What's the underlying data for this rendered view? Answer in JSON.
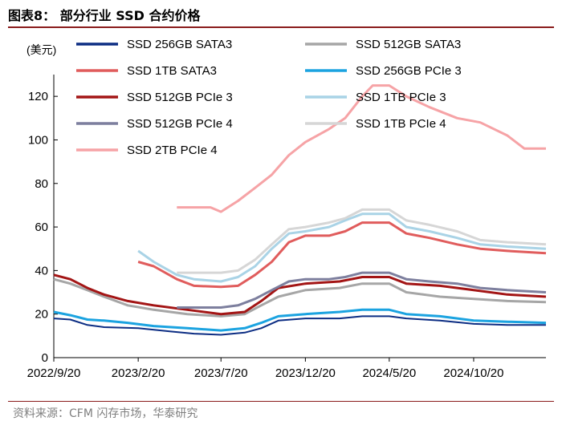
{
  "figure": {
    "title": "图表8：  部分行业 SSD 合约价格",
    "source": "资料来源：CFM 闪存市场，华泰研究"
  },
  "chart_data": {
    "type": "line",
    "title": "部分行业 SSD 合约价格",
    "ylabel": "(美元)",
    "xlabel": "",
    "ylim": [
      0,
      130
    ],
    "yticks": [
      0,
      20,
      40,
      60,
      80,
      100,
      120
    ],
    "xlim": [
      "2022-09-20",
      "2025-02-28"
    ],
    "xticks": [
      {
        "date": "2022-09-20",
        "label": "2022/9/20"
      },
      {
        "date": "2023-02-20",
        "label": "2023/2/20"
      },
      {
        "date": "2023-07-20",
        "label": "2023/7/20"
      },
      {
        "date": "2023-12-20",
        "label": "2023/12/20"
      },
      {
        "date": "2024-05-20",
        "label": "2024/5/20"
      },
      {
        "date": "2024-10-20",
        "label": "2024/10/20"
      }
    ],
    "grid": false,
    "legend_position": "top",
    "series": [
      {
        "name": "SSD 256GB SATA3",
        "color": "#0c2d83",
        "width": 2,
        "points": [
          [
            "2022-09-20",
            18
          ],
          [
            "2022-10-20",
            17.5
          ],
          [
            "2022-11-20",
            15
          ],
          [
            "2022-12-20",
            14
          ],
          [
            "2023-02-20",
            13.5
          ],
          [
            "2023-04-20",
            12
          ],
          [
            "2023-06-01",
            11
          ],
          [
            "2023-07-20",
            10.5
          ],
          [
            "2023-09-01",
            11.5
          ],
          [
            "2023-10-01",
            13.5
          ],
          [
            "2023-11-01",
            17
          ],
          [
            "2023-12-20",
            18
          ],
          [
            "2024-02-20",
            18
          ],
          [
            "2024-04-01",
            19
          ],
          [
            "2024-05-20",
            19
          ],
          [
            "2024-06-20",
            18
          ],
          [
            "2024-08-20",
            17
          ],
          [
            "2024-10-20",
            15.5
          ],
          [
            "2024-12-20",
            15
          ],
          [
            "2025-02-28",
            15
          ]
        ]
      },
      {
        "name": "SSD 512GB SATA3",
        "color": "#a6a6a6",
        "width": 3,
        "points": [
          [
            "2022-09-20",
            36
          ],
          [
            "2022-10-20",
            34
          ],
          [
            "2022-11-20",
            31
          ],
          [
            "2022-12-20",
            28
          ],
          [
            "2023-02-01",
            24
          ],
          [
            "2023-03-20",
            22
          ],
          [
            "2023-05-20",
            20
          ],
          [
            "2023-07-20",
            19
          ],
          [
            "2023-09-01",
            20
          ],
          [
            "2023-10-01",
            24
          ],
          [
            "2023-11-01",
            28
          ],
          [
            "2023-12-20",
            31
          ],
          [
            "2024-02-20",
            32
          ],
          [
            "2024-04-01",
            34
          ],
          [
            "2024-05-20",
            34
          ],
          [
            "2024-06-20",
            30
          ],
          [
            "2024-08-20",
            28
          ],
          [
            "2024-10-20",
            27
          ],
          [
            "2024-12-20",
            26
          ],
          [
            "2025-02-28",
            25.5
          ]
        ]
      },
      {
        "name": "SSD 1TB SATA3",
        "color": "#e05c5c",
        "width": 3,
        "points": [
          [
            "2023-02-20",
            44
          ],
          [
            "2023-03-20",
            42
          ],
          [
            "2023-05-01",
            36
          ],
          [
            "2023-06-01",
            33
          ],
          [
            "2023-07-20",
            32.5
          ],
          [
            "2023-08-20",
            33
          ],
          [
            "2023-09-20",
            38
          ],
          [
            "2023-10-20",
            44
          ],
          [
            "2023-11-20",
            53
          ],
          [
            "2023-12-20",
            56
          ],
          [
            "2024-02-01",
            56
          ],
          [
            "2024-03-01",
            58
          ],
          [
            "2024-04-01",
            62
          ],
          [
            "2024-05-20",
            62
          ],
          [
            "2024-06-20",
            57
          ],
          [
            "2024-08-01",
            55
          ],
          [
            "2024-09-20",
            52
          ],
          [
            "2024-11-01",
            50
          ],
          [
            "2024-12-20",
            49
          ],
          [
            "2025-02-28",
            48
          ]
        ]
      },
      {
        "name": "SSD 256GB PCIe 3",
        "color": "#1ba3e0",
        "width": 3,
        "points": [
          [
            "2022-09-20",
            21
          ],
          [
            "2022-10-20",
            19.5
          ],
          [
            "2022-11-20",
            17.5
          ],
          [
            "2022-12-20",
            17
          ],
          [
            "2023-02-01",
            16
          ],
          [
            "2023-03-20",
            14.5
          ],
          [
            "2023-05-20",
            13.5
          ],
          [
            "2023-07-20",
            12.5
          ],
          [
            "2023-09-01",
            13.5
          ],
          [
            "2023-10-01",
            16
          ],
          [
            "2023-11-01",
            19
          ],
          [
            "2023-12-20",
            20
          ],
          [
            "2024-02-20",
            21
          ],
          [
            "2024-04-01",
            22
          ],
          [
            "2024-05-20",
            22
          ],
          [
            "2024-06-20",
            20
          ],
          [
            "2024-08-20",
            19
          ],
          [
            "2024-10-20",
            17
          ],
          [
            "2024-12-20",
            16.5
          ],
          [
            "2025-02-28",
            16
          ]
        ]
      },
      {
        "name": "SSD 512GB PCIe 3",
        "color": "#a31515",
        "width": 3,
        "points": [
          [
            "2022-09-20",
            38
          ],
          [
            "2022-10-20",
            36
          ],
          [
            "2022-11-20",
            32
          ],
          [
            "2022-12-20",
            29
          ],
          [
            "2023-02-01",
            26
          ],
          [
            "2023-03-20",
            24
          ],
          [
            "2023-05-20",
            22
          ],
          [
            "2023-07-20",
            20
          ],
          [
            "2023-09-01",
            21
          ],
          [
            "2023-10-01",
            26
          ],
          [
            "2023-11-01",
            32
          ],
          [
            "2023-12-20",
            34
          ],
          [
            "2024-02-20",
            35
          ],
          [
            "2024-04-01",
            37
          ],
          [
            "2024-05-20",
            37
          ],
          [
            "2024-06-20",
            34
          ],
          [
            "2024-08-20",
            33
          ],
          [
            "2024-10-20",
            31
          ],
          [
            "2024-12-20",
            29
          ],
          [
            "2025-02-28",
            28
          ]
        ]
      },
      {
        "name": "SSD 1TB PCIe 3",
        "color": "#a9d3e6",
        "width": 3,
        "points": [
          [
            "2023-02-20",
            49
          ],
          [
            "2023-03-20",
            44
          ],
          [
            "2023-05-01",
            38
          ],
          [
            "2023-06-01",
            36
          ],
          [
            "2023-07-20",
            35
          ],
          [
            "2023-08-20",
            37
          ],
          [
            "2023-09-20",
            42
          ],
          [
            "2023-10-20",
            50
          ],
          [
            "2023-11-20",
            57
          ],
          [
            "2023-12-20",
            58
          ],
          [
            "2024-02-01",
            60
          ],
          [
            "2024-03-01",
            63
          ],
          [
            "2024-04-01",
            66
          ],
          [
            "2024-05-20",
            66
          ],
          [
            "2024-06-20",
            60
          ],
          [
            "2024-08-01",
            58
          ],
          [
            "2024-09-20",
            55
          ],
          [
            "2024-11-01",
            52
          ],
          [
            "2024-12-20",
            51
          ],
          [
            "2025-02-28",
            50
          ]
        ]
      },
      {
        "name": "SSD 512GB PCIe 4",
        "color": "#7d7f9e",
        "width": 3,
        "points": [
          [
            "2023-05-01",
            23
          ],
          [
            "2023-07-20",
            23
          ],
          [
            "2023-08-20",
            24
          ],
          [
            "2023-09-20",
            27
          ],
          [
            "2023-10-20",
            31
          ],
          [
            "2023-11-20",
            35
          ],
          [
            "2023-12-20",
            36
          ],
          [
            "2024-02-01",
            36
          ],
          [
            "2024-03-01",
            37
          ],
          [
            "2024-04-01",
            39
          ],
          [
            "2024-05-20",
            39
          ],
          [
            "2024-06-20",
            36
          ],
          [
            "2024-08-01",
            35
          ],
          [
            "2024-09-20",
            34
          ],
          [
            "2024-11-01",
            32
          ],
          [
            "2024-12-20",
            31
          ],
          [
            "2025-02-28",
            30
          ]
        ]
      },
      {
        "name": "SSD 1TB PCIe 4",
        "color": "#d6d6d6",
        "width": 3,
        "points": [
          [
            "2023-05-01",
            39
          ],
          [
            "2023-07-20",
            39
          ],
          [
            "2023-08-20",
            40
          ],
          [
            "2023-09-20",
            45
          ],
          [
            "2023-10-20",
            52
          ],
          [
            "2023-11-20",
            59
          ],
          [
            "2023-12-20",
            60
          ],
          [
            "2024-02-01",
            62
          ],
          [
            "2024-03-01",
            64
          ],
          [
            "2024-04-01",
            68
          ],
          [
            "2024-05-20",
            68
          ],
          [
            "2024-06-20",
            63
          ],
          [
            "2024-08-01",
            61
          ],
          [
            "2024-09-20",
            58
          ],
          [
            "2024-11-01",
            54
          ],
          [
            "2024-12-20",
            53
          ],
          [
            "2025-02-28",
            52
          ]
        ]
      },
      {
        "name": "SSD 2TB PCIe 4",
        "color": "#f6a3a6",
        "width": 3,
        "points": [
          [
            "2023-05-01",
            69
          ],
          [
            "2023-07-01",
            69
          ],
          [
            "2023-07-20",
            67
          ],
          [
            "2023-08-20",
            72
          ],
          [
            "2023-09-20",
            78
          ],
          [
            "2023-10-20",
            84
          ],
          [
            "2023-11-20",
            93
          ],
          [
            "2023-12-20",
            99
          ],
          [
            "2024-02-01",
            105
          ],
          [
            "2024-03-01",
            110
          ],
          [
            "2024-04-01",
            120
          ],
          [
            "2024-04-20",
            125
          ],
          [
            "2024-05-20",
            125
          ],
          [
            "2024-06-20",
            120
          ],
          [
            "2024-08-01",
            115
          ],
          [
            "2024-09-20",
            110
          ],
          [
            "2024-11-01",
            108
          ],
          [
            "2024-12-20",
            102
          ],
          [
            "2025-01-20",
            96
          ],
          [
            "2025-02-28",
            96
          ]
        ]
      }
    ]
  }
}
